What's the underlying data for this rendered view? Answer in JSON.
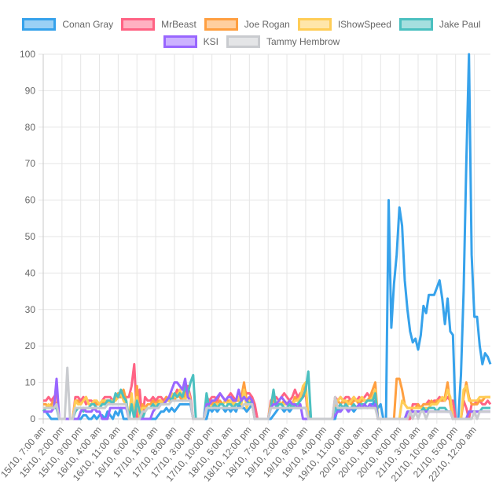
{
  "chart_data": {
    "type": "line",
    "title": "",
    "xlabel": "",
    "ylabel": "",
    "ylim": [
      0,
      100
    ],
    "y_ticks": [
      "0",
      "10",
      "20",
      "30",
      "40",
      "50",
      "60",
      "70",
      "80",
      "90",
      "100"
    ],
    "grid": true,
    "legend_position": "top",
    "x_interval_hours": 1,
    "x_tick_every_hours": 7,
    "x_tick_labels": [
      "15/10, 7:00 am",
      "15/10, 2:00 pm",
      "15/10, 9:00 pm",
      "16/10, 4:00 am",
      "16/10, 11:00 am",
      "16/10, 6:00 pm",
      "17/10, 1:00 am",
      "17/10, 8:00 am",
      "17/10, 3:00 pm",
      "17/10, 10:00 pm",
      "18/10, 5:00 am",
      "18/10, 12:00 pm",
      "18/10, 7:00 pm",
      "19/10, 2:00 am",
      "19/10, 9:00 am",
      "19/10, 4:00 pm",
      "19/10, 11:00 pm",
      "20/10, 6:00 am",
      "20/10, 1:00 pm",
      "20/10, 8:00 pm",
      "21/10, 3:00 am",
      "21/10, 10:00 am",
      "21/10, 5:00 pm",
      "22/10, 12:00 am"
    ],
    "series": [
      {
        "name": "Conan Gray",
        "color": "#36a2eb",
        "fill": "rgba(54,162,235,0.5)",
        "values": [
          2,
          2,
          1,
          0,
          0,
          0,
          0,
          0,
          0,
          0,
          0,
          0,
          0,
          0,
          0,
          1,
          1,
          0,
          0,
          1,
          0,
          1,
          1,
          0,
          2,
          1,
          0,
          2,
          1,
          3,
          0,
          0,
          0,
          0,
          0,
          0,
          0,
          0,
          0,
          0,
          0,
          0,
          0,
          1,
          2,
          2,
          3,
          2,
          3,
          2,
          3,
          4,
          4,
          4,
          4,
          4,
          0,
          0,
          0,
          0,
          0,
          0,
          3,
          2,
          3,
          2,
          3,
          3,
          2,
          3,
          2,
          3,
          2,
          4,
          3,
          3,
          2,
          3,
          4,
          0,
          0,
          0,
          0,
          0,
          0,
          0,
          1,
          2,
          3,
          3,
          2,
          3,
          2,
          3,
          3,
          3,
          3,
          3,
          3,
          2,
          0,
          0,
          0,
          0,
          0,
          0,
          0,
          0,
          0,
          0,
          3,
          2,
          3,
          3,
          2,
          3,
          2,
          3,
          3,
          3,
          4,
          3,
          4,
          4,
          5,
          3,
          4,
          0,
          0,
          60,
          25,
          37,
          45,
          58,
          53,
          38,
          30,
          24,
          21,
          22,
          19,
          23,
          31,
          29,
          34,
          34,
          34,
          36,
          38,
          33,
          26,
          33,
          24,
          23,
          0,
          0,
          12,
          35,
          70,
          100,
          45,
          28,
          28,
          20,
          15,
          18,
          17,
          15
        ]
      },
      {
        "name": "MrBeast",
        "color": "#ff6384",
        "fill": "rgba(255,99,132,0.5)",
        "values": [
          5,
          5,
          6,
          5,
          6,
          7,
          0,
          0,
          0,
          0,
          0,
          0,
          6,
          6,
          5,
          6,
          4,
          5,
          5,
          4,
          4,
          4,
          5,
          6,
          6,
          6,
          5,
          6,
          6,
          6,
          6,
          6,
          6,
          9,
          15,
          0,
          8,
          0,
          6,
          5,
          5,
          6,
          5,
          6,
          6,
          5,
          6,
          5,
          7,
          6,
          8,
          7,
          6,
          7,
          9,
          6,
          0,
          0,
          0,
          0,
          0,
          6,
          5,
          6,
          6,
          5,
          7,
          6,
          5,
          6,
          7,
          6,
          5,
          6,
          6,
          8,
          7,
          7,
          6,
          4,
          0,
          0,
          0,
          0,
          0,
          5,
          6,
          6,
          5,
          6,
          7,
          6,
          5,
          6,
          8,
          6,
          7,
          6,
          7,
          0,
          0,
          0,
          0,
          0,
          0,
          0,
          0,
          0,
          0,
          6,
          5,
          6,
          5,
          6,
          6,
          5,
          6,
          5,
          6,
          5,
          6,
          7,
          6,
          7,
          6,
          0,
          0,
          0,
          0,
          0,
          0,
          0,
          0,
          0,
          0,
          0,
          0,
          0,
          4,
          4,
          4,
          3,
          4,
          4,
          5,
          4,
          5,
          5,
          6,
          5,
          5,
          6,
          5,
          5,
          0,
          0,
          0,
          5,
          3,
          0,
          4,
          4,
          5,
          5,
          4,
          4,
          5,
          4
        ]
      },
      {
        "name": "Joe Rogan",
        "color": "#ff9f40",
        "fill": "rgba(255,159,64,0.5)",
        "values": [
          4,
          4,
          3,
          4,
          5,
          4,
          0,
          0,
          0,
          0,
          0,
          0,
          5,
          5,
          4,
          5,
          6,
          4,
          4,
          5,
          4,
          4,
          4,
          5,
          5,
          5,
          4,
          6,
          7,
          6,
          8,
          5,
          0,
          6,
          0,
          9,
          0,
          4,
          3,
          4,
          4,
          5,
          4,
          5,
          5,
          4,
          6,
          5,
          6,
          5,
          7,
          6,
          5,
          7,
          6,
          5,
          0,
          0,
          0,
          0,
          0,
          4,
          4,
          4,
          5,
          4,
          5,
          4,
          5,
          5,
          5,
          4,
          5,
          5,
          6,
          10,
          5,
          6,
          4,
          0,
          0,
          0,
          0,
          0,
          0,
          4,
          5,
          4,
          5,
          4,
          5,
          4,
          5,
          4,
          6,
          5,
          6,
          8,
          9,
          0,
          0,
          0,
          0,
          0,
          0,
          0,
          0,
          0,
          0,
          4,
          5,
          4,
          5,
          4,
          5,
          4,
          5,
          5,
          4,
          5,
          5,
          5,
          6,
          8,
          10,
          0,
          0,
          0,
          0,
          0,
          0,
          0,
          11,
          11,
          8,
          4,
          3,
          3,
          3,
          3,
          4,
          3,
          4,
          4,
          4,
          5,
          4,
          5,
          5,
          5,
          6,
          10,
          4,
          0,
          0,
          0,
          0,
          6,
          10,
          6,
          4,
          4,
          4,
          5,
          5,
          6,
          6,
          6
        ]
      },
      {
        "name": "IShowSpeed",
        "color": "#ffcd56",
        "fill": "rgba(255,205,86,0.5)",
        "values": [
          3,
          3,
          4,
          3,
          4,
          4,
          0,
          0,
          0,
          0,
          0,
          0,
          5,
          4,
          4,
          5,
          6,
          4,
          4,
          5,
          5,
          4,
          5,
          5,
          4,
          5,
          5,
          5,
          6,
          7,
          5,
          4,
          0,
          7,
          0,
          6,
          0,
          3,
          3,
          3,
          3,
          4,
          4,
          4,
          5,
          4,
          5,
          5,
          7,
          6,
          6,
          8,
          6,
          5,
          8,
          5,
          0,
          0,
          0,
          0,
          0,
          4,
          4,
          3,
          4,
          4,
          4,
          4,
          5,
          4,
          5,
          4,
          5,
          6,
          4,
          8,
          3,
          5,
          5,
          0,
          0,
          0,
          0,
          0,
          0,
          4,
          7,
          4,
          5,
          4,
          4,
          4,
          5,
          4,
          5,
          5,
          6,
          9,
          10,
          0,
          0,
          0,
          0,
          0,
          0,
          0,
          0,
          0,
          0,
          5,
          5,
          6,
          5,
          5,
          4,
          5,
          6,
          5,
          5,
          6,
          5,
          5,
          5,
          6,
          8,
          0,
          0,
          0,
          0,
          0,
          0,
          0,
          0,
          0,
          5,
          4,
          3,
          3,
          3,
          3,
          3,
          3,
          3,
          3,
          3,
          4,
          4,
          4,
          5,
          6,
          5,
          8,
          6,
          0,
          0,
          0,
          0,
          8,
          9,
          5,
          5,
          5,
          5,
          6,
          6,
          6,
          6,
          6
        ]
      },
      {
        "name": "Jake Paul",
        "color": "#4bc0c0",
        "fill": "rgba(75,192,192,0.5)",
        "values": [
          2,
          3,
          3,
          3,
          3,
          3,
          0,
          0,
          0,
          0,
          0,
          0,
          2,
          3,
          3,
          2,
          3,
          3,
          4,
          4,
          3,
          3,
          4,
          4,
          5,
          5,
          4,
          7,
          6,
          8,
          6,
          5,
          0,
          4,
          0,
          5,
          2,
          0,
          2,
          3,
          3,
          4,
          3,
          4,
          4,
          4,
          5,
          6,
          5,
          7,
          6,
          7,
          6,
          9,
          7,
          10,
          12,
          0,
          0,
          0,
          0,
          7,
          3,
          3,
          4,
          3,
          4,
          4,
          3,
          4,
          4,
          3,
          4,
          4,
          5,
          6,
          5,
          4,
          5,
          0,
          0,
          0,
          0,
          0,
          0,
          3,
          8,
          3,
          4,
          4,
          3,
          3,
          4,
          3,
          4,
          4,
          5,
          6,
          8,
          13,
          0,
          0,
          0,
          0,
          0,
          0,
          0,
          0,
          0,
          3,
          3,
          4,
          3,
          4,
          3,
          3,
          4,
          3,
          4,
          4,
          4,
          5,
          5,
          5,
          7,
          0,
          0,
          0,
          0,
          0,
          0,
          0,
          0,
          0,
          0,
          0,
          2,
          2,
          2,
          2,
          2,
          2,
          3,
          2,
          3,
          3,
          3,
          2,
          3,
          3,
          3,
          2,
          2,
          0,
          0,
          0,
          0,
          0,
          0,
          2,
          2,
          2,
          2,
          2,
          3,
          3,
          3,
          3
        ]
      },
      {
        "name": "KSI",
        "color": "#9966ff",
        "fill": "rgba(153,102,255,0.5)",
        "values": [
          2,
          2,
          2,
          2,
          3,
          11,
          0,
          0,
          0,
          0,
          0,
          0,
          0,
          0,
          2,
          3,
          2,
          2,
          2,
          3,
          2,
          2,
          0,
          0,
          0,
          3,
          3,
          3,
          3,
          3,
          3,
          3,
          0,
          0,
          0,
          0,
          0,
          0,
          0,
          0,
          0,
          2,
          3,
          3,
          4,
          4,
          5,
          6,
          8,
          10,
          10,
          9,
          8,
          11,
          6,
          5,
          0,
          0,
          0,
          0,
          0,
          4,
          4,
          5,
          5,
          6,
          7,
          6,
          5,
          6,
          6,
          5,
          5,
          8,
          5,
          6,
          5,
          6,
          5,
          0,
          0,
          0,
          0,
          0,
          0,
          3,
          4,
          4,
          5,
          6,
          5,
          4,
          5,
          4,
          4,
          3,
          4,
          0,
          0,
          0,
          0,
          0,
          0,
          0,
          0,
          0,
          0,
          0,
          0,
          1,
          2,
          2,
          3,
          3,
          2,
          3,
          3,
          3,
          4,
          3,
          4,
          3,
          4,
          3,
          4,
          0,
          0,
          0,
          0,
          0,
          0,
          0,
          0,
          0,
          0,
          0,
          2,
          2,
          2,
          2,
          2,
          2,
          2,
          2,
          2,
          2,
          2,
          2,
          2,
          2,
          2,
          2,
          2,
          0,
          0,
          0,
          0,
          0,
          0,
          2,
          2,
          2,
          2,
          2,
          2,
          2,
          2,
          2
        ]
      },
      {
        "name": "Tammy Hembrow",
        "color": "#c9cbcf",
        "fill": "rgba(201,203,207,0.5)",
        "values": [
          3,
          3,
          3,
          3,
          3,
          4,
          0,
          0,
          0,
          14,
          0,
          0,
          3,
          3,
          3,
          3,
          3,
          3,
          3,
          3,
          3,
          3,
          3,
          3,
          4,
          4,
          4,
          4,
          4,
          4,
          4,
          4,
          0,
          0,
          0,
          0,
          0,
          2,
          2,
          3,
          3,
          3,
          3,
          3,
          4,
          4,
          4,
          4,
          5,
          5,
          5,
          5,
          5,
          5,
          5,
          5,
          0,
          0,
          0,
          0,
          0,
          3,
          3,
          3,
          3,
          3,
          3,
          3,
          3,
          3,
          3,
          3,
          3,
          3,
          3,
          4,
          4,
          4,
          4,
          0,
          0,
          0,
          0,
          0,
          0,
          3,
          3,
          3,
          3,
          3,
          3,
          3,
          3,
          3,
          3,
          3,
          3,
          3,
          3,
          0,
          0,
          0,
          0,
          0,
          0,
          0,
          0,
          0,
          0,
          6,
          3,
          3,
          3,
          3,
          3,
          3,
          3,
          3,
          3,
          3,
          3,
          3,
          3,
          3,
          3,
          0,
          0,
          0,
          0,
          0,
          0,
          0,
          0,
          0,
          0,
          0,
          0,
          2,
          0,
          2,
          0,
          2,
          2,
          0,
          2,
          2,
          2,
          2,
          2,
          2,
          2,
          2,
          2,
          0,
          0,
          0,
          0,
          0,
          0,
          0,
          0,
          2,
          0,
          2,
          2,
          2,
          2,
          2
        ]
      }
    ]
  }
}
